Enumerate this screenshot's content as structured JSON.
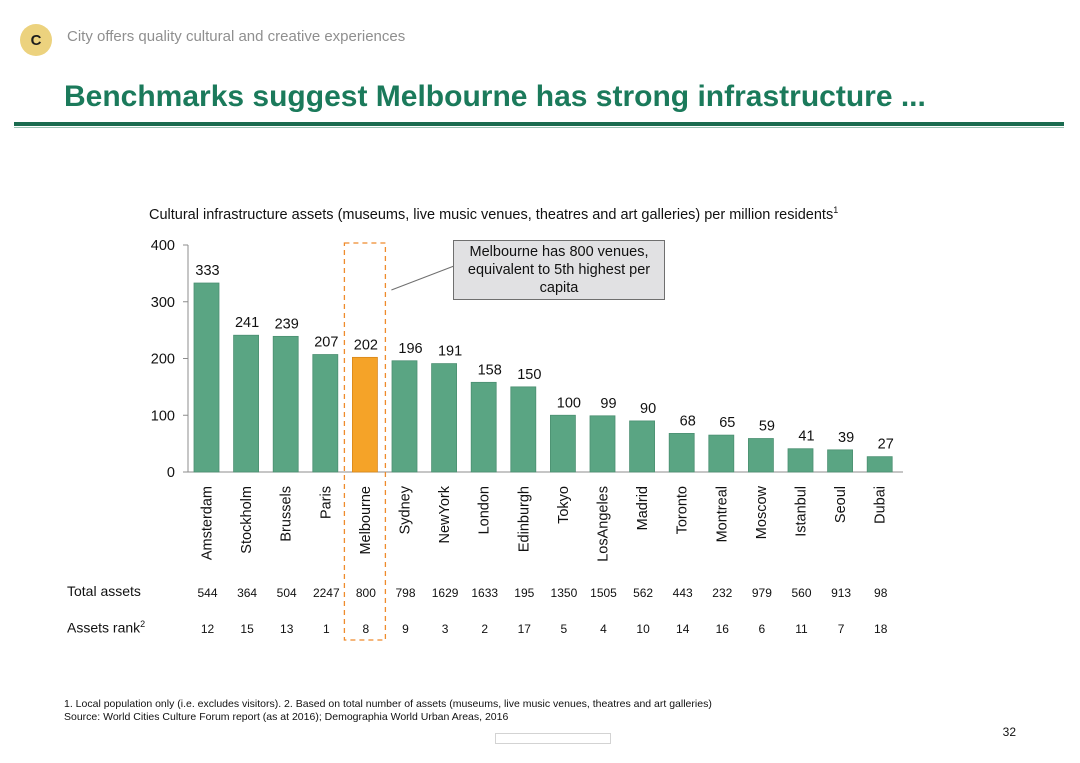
{
  "header": {
    "badge": "C",
    "section_title": "City offers quality cultural and creative experiences",
    "page_title": "Benchmarks suggest Melbourne has strong infrastructure ..."
  },
  "chart_data": {
    "type": "bar",
    "title": "Cultural infrastructure assets (museums, live music venues, theatres and art galleries) per million residents",
    "title_footnote_mark": "1",
    "categories": [
      "Amsterdam",
      "Stockholm",
      "Brussels",
      "Paris",
      "Melbourne",
      "Sydney",
      "NewYork",
      "London",
      "Edinburgh",
      "Tokyo",
      "LosAngeles",
      "Madrid",
      "Toronto",
      "Montreal",
      "Moscow",
      "Istanbul",
      "Seoul",
      "Dubai"
    ],
    "values": [
      333,
      241,
      239,
      207,
      202,
      196,
      191,
      158,
      150,
      100,
      99,
      90,
      68,
      65,
      59,
      41,
      39,
      27
    ],
    "highlight": "Melbourne",
    "yticks": [
      0,
      100,
      200,
      300,
      400
    ],
    "ylim": [
      0,
      400
    ],
    "xlabel": "",
    "ylabel": "",
    "colors": {
      "bar": "#5aa583",
      "highlight": "#f5a328",
      "axis": "#8c8c8c",
      "dash": "#ef8b2c"
    },
    "annotation": "Melbourne has 800 venues, equivalent to 5th highest per capita"
  },
  "table": {
    "total_assets_label": "Total assets",
    "total_assets": [
      "544",
      "364",
      "504",
      "2247",
      "800",
      "798",
      "1629",
      "1633",
      "195",
      "1350",
      "1505",
      "562",
      "443",
      "232",
      "979",
      "560",
      "913",
      "98"
    ],
    "assets_rank_label": "Assets rank",
    "assets_rank_footnote_mark": "2",
    "assets_rank": [
      "12",
      "15",
      "13",
      "1",
      "8",
      "9",
      "3",
      "2",
      "17",
      "5",
      "4",
      "10",
      "14",
      "16",
      "6",
      "11",
      "7",
      "18"
    ]
  },
  "footer": {
    "note1": "1. Local population only (i.e. excludes visitors). 2. Based on total number of assets (museums, live music venues, theatres and art galleries)",
    "source": "Source: World Cities Culture Forum report (as at 2016); Demographia World Urban Areas, 2016",
    "page_number": "32"
  }
}
